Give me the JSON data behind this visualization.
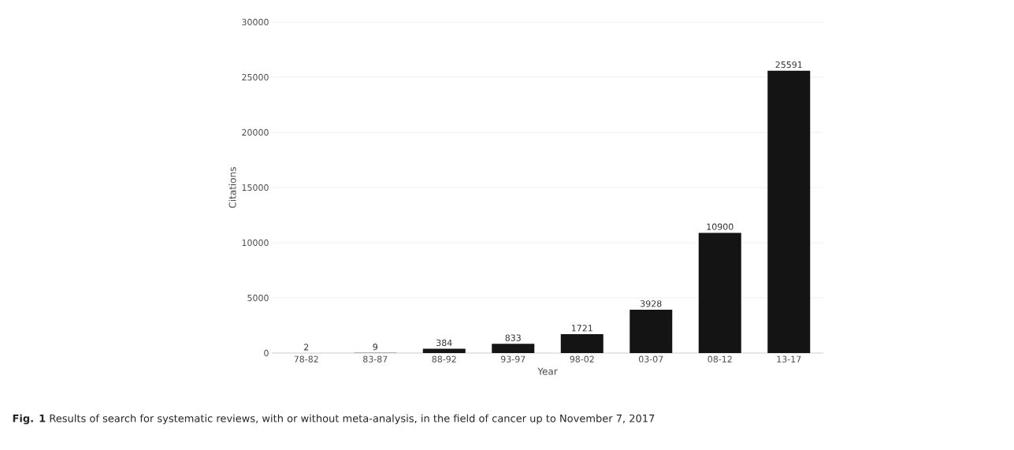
{
  "chart_data": {
    "type": "bar",
    "xlabel": "Year",
    "ylabel": "Citations",
    "categories": [
      "78-82",
      "83-87",
      "88-92",
      "93-97",
      "98-02",
      "03-07",
      "08-12",
      "13-17"
    ],
    "values": [
      2,
      9,
      384,
      833,
      1721,
      3928,
      10900,
      25591
    ],
    "color": "#141414",
    "ylim": [
      0,
      30000
    ],
    "yticks": [
      0,
      5000,
      10000,
      15000,
      20000,
      25000,
      30000
    ],
    "grid": "y",
    "data_labels": true,
    "annotations": [
      "**Fig. 1** Results of search for systematic reviews, with or without meta-analysis, in the field of cancer up to November 7, 2017"
    ]
  }
}
